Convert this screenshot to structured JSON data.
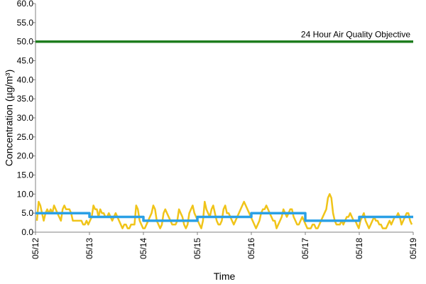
{
  "chart_data": {
    "type": "line",
    "xlabel": "Time",
    "ylabel": "Concentration (µg/m³)",
    "ylim": [
      0,
      60
    ],
    "y_ticks": [
      "0.0",
      "5.0",
      "10.0",
      "15.0",
      "20.0",
      "25.0",
      "30.0",
      "35.0",
      "40.0",
      "45.0",
      "50.0",
      "55.0",
      "60.0"
    ],
    "x_tick_labels": [
      "05/12",
      "05/13",
      "05/14",
      "05/15",
      "05/16",
      "05/17",
      "05/18",
      "05/19"
    ],
    "grid": false,
    "colors": {
      "objective": "#1e7d1e",
      "hourly": "#f0c419",
      "daily": "#2aa0e6",
      "axis": "#808080"
    },
    "objective_line": {
      "value": 50,
      "label": "24 Hour Air Quality Objective"
    },
    "hourly_series": [
      3,
      8,
      7,
      5,
      3,
      5,
      6,
      5,
      6,
      5,
      7,
      6,
      5,
      4,
      3,
      6,
      7,
      6,
      6,
      6,
      5,
      3,
      3,
      3,
      3,
      3,
      3,
      2,
      2,
      3,
      2,
      3,
      4,
      7,
      6,
      6,
      4,
      6,
      5,
      5,
      4,
      4,
      5,
      4,
      3,
      4,
      5,
      4,
      3,
      2,
      1,
      2,
      2,
      1,
      1,
      2,
      2,
      2,
      7,
      6,
      3,
      2,
      1,
      1,
      2,
      3,
      4,
      5,
      7,
      6,
      3,
      2,
      1,
      2,
      5,
      6,
      5,
      4,
      3,
      2,
      2,
      2,
      3,
      6,
      5,
      4,
      2,
      1,
      2,
      5,
      6,
      7,
      5,
      4,
      3,
      2,
      1,
      3,
      8,
      6,
      5,
      4,
      6,
      7,
      5,
      3,
      2,
      2,
      3,
      6,
      7,
      5,
      5,
      4,
      3,
      2,
      3,
      4,
      5,
      6,
      7,
      8,
      7,
      6,
      5,
      4,
      3,
      2,
      1,
      2,
      3,
      5,
      6,
      6,
      7,
      6,
      5,
      4,
      3,
      3,
      1,
      2,
      3,
      4,
      6,
      5,
      4,
      5,
      6,
      6,
      4,
      3,
      2,
      2,
      3,
      4,
      3,
      2,
      1,
      1,
      1,
      2,
      2,
      1,
      1,
      2,
      3,
      4,
      5,
      6,
      9,
      10,
      9,
      5,
      3,
      2,
      2,
      2,
      3,
      2,
      3,
      4,
      4,
      5,
      4,
      3,
      3,
      2,
      1,
      3,
      4,
      5,
      3,
      2,
      1,
      2,
      3,
      4,
      3,
      3,
      2,
      2,
      1,
      1,
      1,
      2,
      3,
      2,
      3,
      4,
      4,
      5,
      4,
      2,
      3,
      4,
      5,
      5,
      3,
      2
    ],
    "daily_series": [
      {
        "date_start": "05/12",
        "date_end": "05/13",
        "value": 5
      },
      {
        "date_start": "05/13",
        "date_end": "05/14",
        "value": 4
      },
      {
        "date_start": "05/14",
        "date_end": "05/15",
        "value": 3
      },
      {
        "date_start": "05/15",
        "date_end": "05/16",
        "value": 4
      },
      {
        "date_start": "05/16",
        "date_end": "05/17",
        "value": 5
      },
      {
        "date_start": "05/17",
        "date_end": "05/18",
        "value": 3
      },
      {
        "date_start": "05/18",
        "date_end": "05/19",
        "value": 4
      }
    ]
  }
}
